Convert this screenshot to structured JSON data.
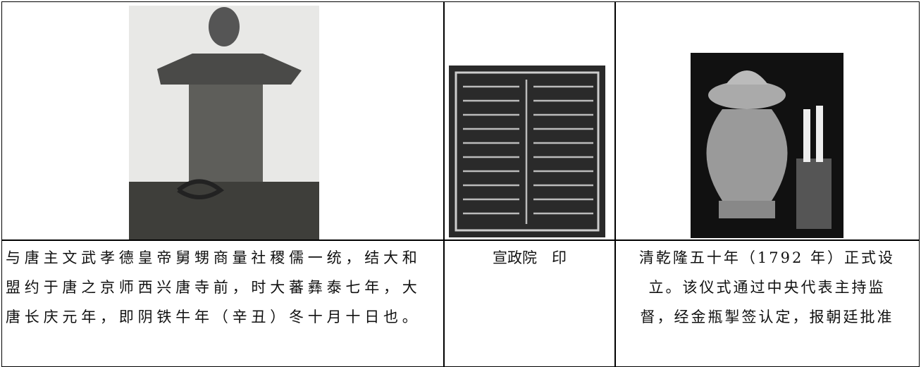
{
  "table": {
    "rows": [
      [
        {
          "lines": [
            "与唐主文武孝德皇帝舅甥商量社稷儒一统，结大和",
            "盟约于唐之京师西兴唐寺前，时大蕃彝泰七年，大",
            "唐长庆元年，即阴铁牛年（辛丑）冬十月十日也。"
          ]
        },
        {
          "lines": [
            "宣政院　印"
          ]
        },
        {
          "lines": [
            "清乾隆五十年（1792 年）正式设",
            "立。该仪式通过中央代表主持监",
            "督，经金瓶掣签认定，报朝廷批准"
          ]
        }
      ]
    ]
  }
}
